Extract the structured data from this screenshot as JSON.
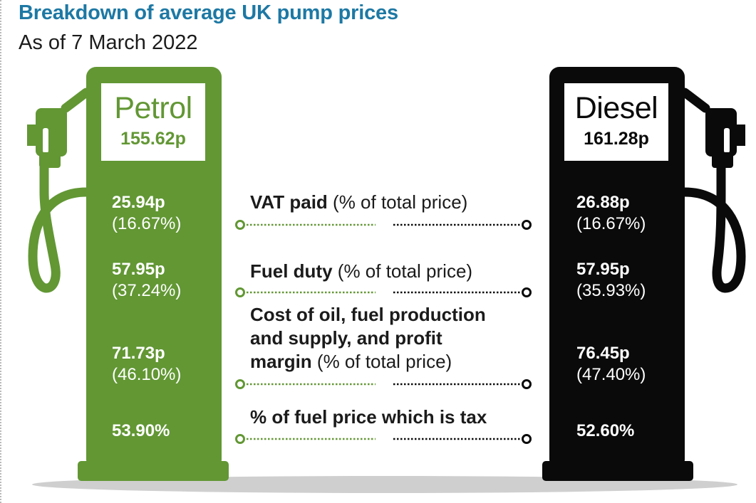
{
  "header": {
    "title": "Breakdown of average UK pump prices",
    "subtitle": "As of 7 March 2022"
  },
  "colors": {
    "petrol": "#629734",
    "diesel": "#0a0a0a",
    "title": "#1d78a4",
    "text": "#1b1b1b"
  },
  "petrol": {
    "name": "Petrol",
    "price": "155.62p",
    "vat": {
      "pence": "25.94p",
      "percent": "(16.67%)"
    },
    "duty": {
      "pence": "57.95p",
      "percent": "(37.24%)"
    },
    "cost": {
      "pence": "71.73p",
      "percent": "(46.10%)"
    },
    "tax_share": "53.90%"
  },
  "diesel": {
    "name": "Diesel",
    "price": "161.28p",
    "vat": {
      "pence": "26.88p",
      "percent": "(16.67%)"
    },
    "duty": {
      "pence": "57.95p",
      "percent": "(35.93%)"
    },
    "cost": {
      "pence": "76.45p",
      "percent": "(47.40%)"
    },
    "tax_share": "52.60%"
  },
  "categories": {
    "vat": {
      "bold": "VAT paid",
      "normal": " (% of total price)"
    },
    "duty": {
      "bold": "Fuel duty",
      "normal": " (% of total price)"
    },
    "cost": {
      "bold_line1": "Cost of oil, fuel production",
      "bold_line2": "and supply, and profit",
      "bold_line3": "margin",
      "normal": " (% of total price)"
    },
    "tax": {
      "bold": "% of fuel price which is tax"
    }
  }
}
